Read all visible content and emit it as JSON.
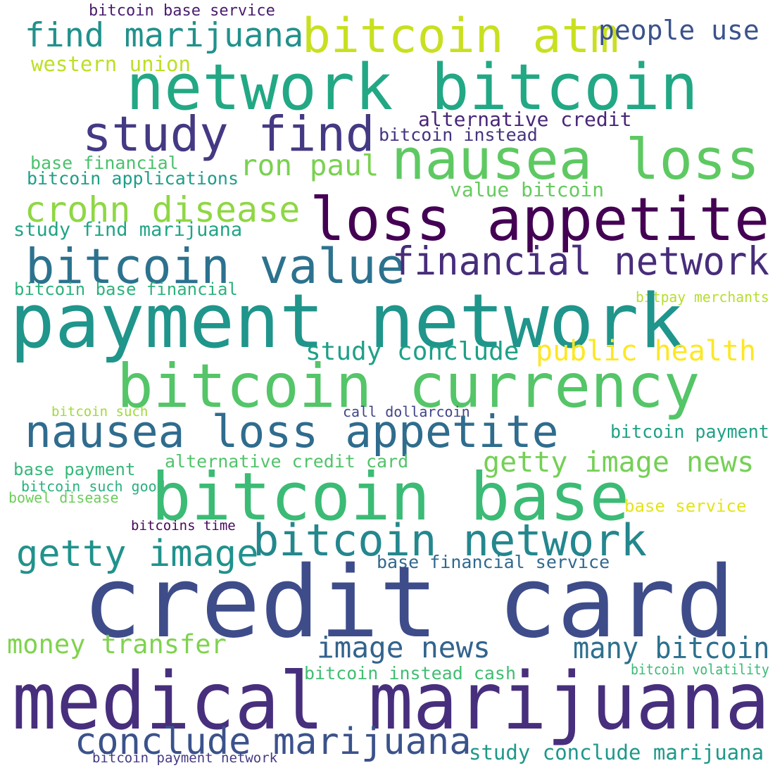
{
  "word_cloud": {
    "words": [
      {
        "text": "bitcoin base service",
        "color": "#481c6e"
      },
      {
        "text": "find marijuana",
        "color": "#21918c"
      },
      {
        "text": "bitcoin atm",
        "color": "#c8e020"
      },
      {
        "text": "people use",
        "color": "#3b528b"
      },
      {
        "text": "western union",
        "color": "#bddf26"
      },
      {
        "text": "network bitcoin",
        "color": "#22a884"
      },
      {
        "text": "study find",
        "color": "#443983"
      },
      {
        "text": "alternative credit",
        "color": "#482677"
      },
      {
        "text": "bitcoin instead",
        "color": "#46337e"
      },
      {
        "text": "nausea loss",
        "color": "#5ec962"
      },
      {
        "text": "base financial",
        "color": "#4ac16d"
      },
      {
        "text": "ron paul",
        "color": "#7ad151"
      },
      {
        "text": "bitcoin applications",
        "color": "#1f9e89"
      },
      {
        "text": "value bitcoin",
        "color": "#65cb5e"
      },
      {
        "text": "crohn disease",
        "color": "#8fd744"
      },
      {
        "text": "loss appetite",
        "color": "#440154"
      },
      {
        "text": "study find marijuana",
        "color": "#20a486"
      },
      {
        "text": "bitcoin value",
        "color": "#2c728e"
      },
      {
        "text": "financial network",
        "color": "#472d7b"
      },
      {
        "text": "bitcoin base financial",
        "color": "#2db27d"
      },
      {
        "text": "bitpay merchants",
        "color": "#b5de2b"
      },
      {
        "text": "payment network",
        "color": "#1f958b"
      },
      {
        "text": "study conclude",
        "color": "#1fa088"
      },
      {
        "text": "public health",
        "color": "#fde725"
      },
      {
        "text": "bitcoin currency",
        "color": "#54c568"
      },
      {
        "text": "bitcoin such",
        "color": "#a0da39"
      },
      {
        "text": "call dollarcoin",
        "color": "#414487"
      },
      {
        "text": "nausea loss appetite",
        "color": "#2f6c8e"
      },
      {
        "text": "bitcoin payment",
        "color": "#1fa187"
      },
      {
        "text": "base payment",
        "color": "#35b779"
      },
      {
        "text": "alternative credit card",
        "color": "#50c46a"
      },
      {
        "text": "getty image news",
        "color": "#74d055"
      },
      {
        "text": "bitcoin such good",
        "color": "#2ab07f"
      },
      {
        "text": "bowel disease",
        "color": "#6ccd5a"
      },
      {
        "text": "bitcoin base",
        "color": "#3bbb75"
      },
      {
        "text": "base service",
        "color": "#e5e419"
      },
      {
        "text": "bitcoins time",
        "color": "#46085c"
      },
      {
        "text": "bitcoin network",
        "color": "#24878e"
      },
      {
        "text": "getty image",
        "color": "#20928c"
      },
      {
        "text": "base financial service",
        "color": "#31688e"
      },
      {
        "text": "credit card",
        "color": "#3e4c8a"
      },
      {
        "text": "money transfer",
        "color": "#7fd34e"
      },
      {
        "text": "image news",
        "color": "#33638d"
      },
      {
        "text": "many bitcoin",
        "color": "#2d708e"
      },
      {
        "text": "bitcoin instead cash",
        "color": "#40bd72"
      },
      {
        "text": "bitcoin volatility",
        "color": "#3aba76"
      },
      {
        "text": "medical marijuana",
        "color": "#472f7d"
      },
      {
        "text": "conclude marijuana",
        "color": "#3b528b"
      },
      {
        "text": "study conclude marijuana",
        "color": "#1f988b"
      },
      {
        "text": "bitcoin payment network",
        "color": "#443a83"
      }
    ]
  }
}
